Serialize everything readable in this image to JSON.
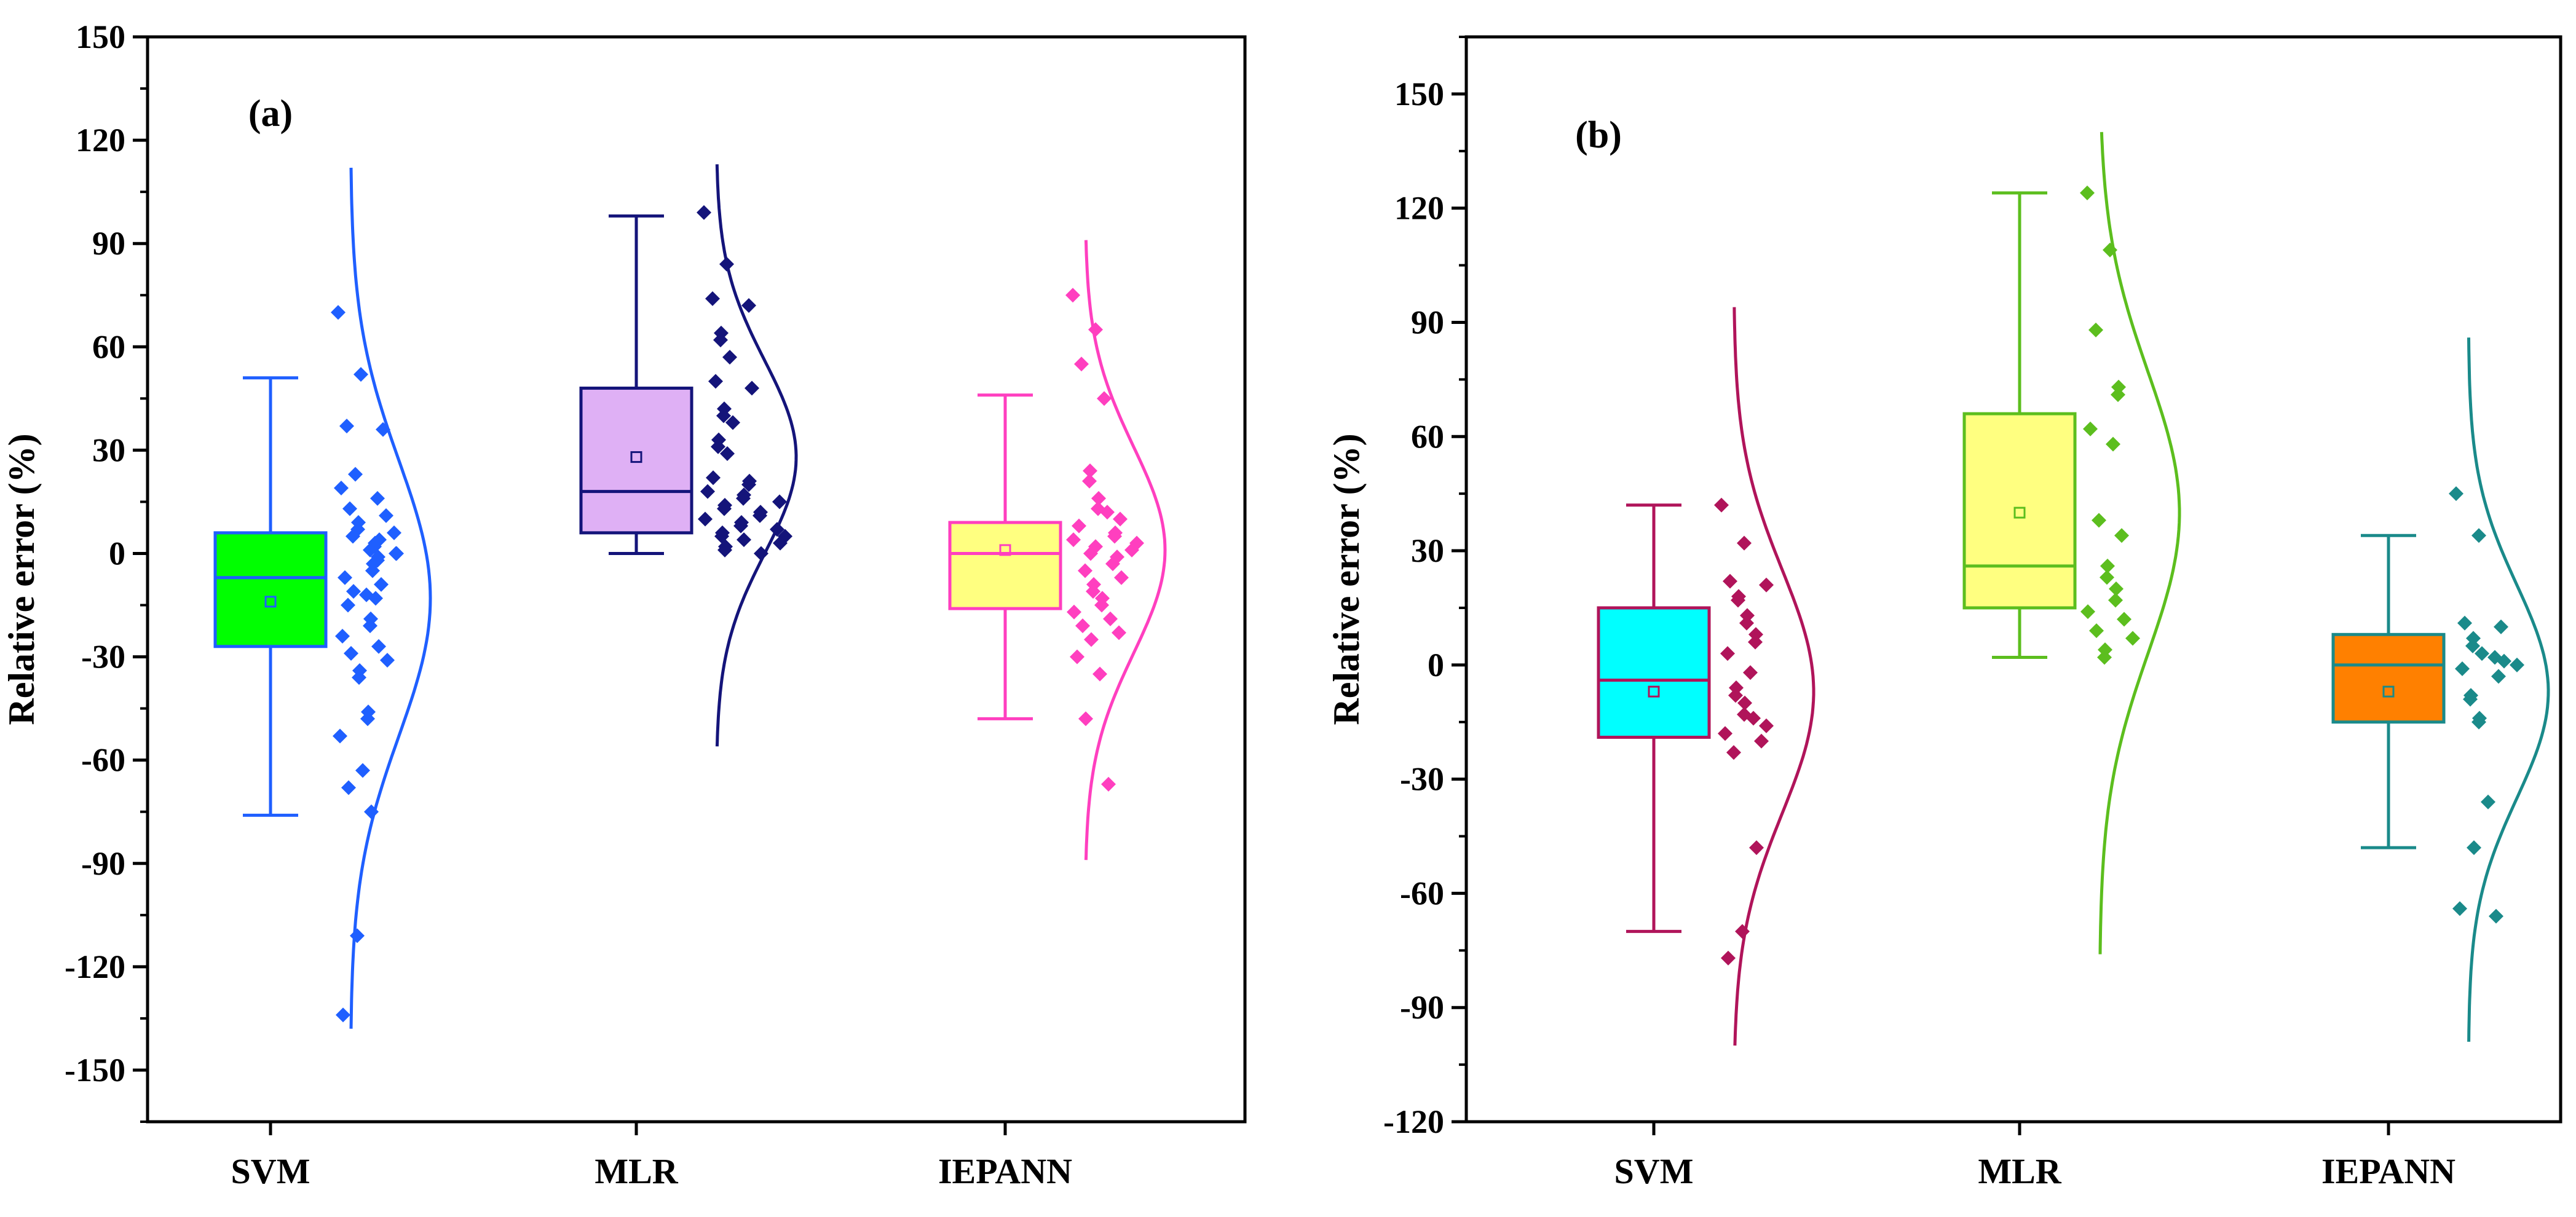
{
  "chart_data": [
    {
      "type": "box",
      "panel_label": "(a)",
      "ylabel": "Relative error (%)",
      "ylim": [
        -165,
        150
      ],
      "yticks": [
        150,
        120,
        90,
        60,
        30,
        0,
        -30,
        -60,
        -90,
        -120,
        -150
      ],
      "yticks_text": [
        "150",
        "120",
        "90",
        "60",
        "30",
        "0",
        "-30",
        "-60",
        "-90",
        "-120",
        "-150"
      ],
      "categories": [
        "SVM",
        "MLR",
        "IEPANN"
      ],
      "series": [
        {
          "name": "SVM",
          "color": "#1f5fff",
          "fill": "#00ff00",
          "stats": {
            "whisker_low": -76,
            "q1": -27,
            "median": -7,
            "mean": -14,
            "q3": 6,
            "whisker_high": 51
          },
          "curve": {
            "mu": -13,
            "sigma": 40,
            "min": -138,
            "max": 112
          },
          "points": [
            70,
            52,
            37,
            36,
            23,
            19,
            16,
            13,
            11,
            9,
            7,
            6,
            5,
            4,
            3,
            2,
            1,
            0,
            0,
            -1,
            -2,
            -3,
            -5,
            -7,
            -9,
            -11,
            -12,
            -13,
            -15,
            -19,
            -21,
            -24,
            -27,
            -29,
            -31,
            -34,
            -36,
            -46,
            -48,
            -53,
            -63,
            -68,
            -75,
            -111,
            -134
          ]
        },
        {
          "name": "MLR",
          "color": "#14147a",
          "fill": "#dfb0f5",
          "stats": {
            "whisker_low": 0,
            "q1": 6,
            "median": 18,
            "mean": 28,
            "q3": 48,
            "whisker_high": 98
          },
          "curve": {
            "mu": 28,
            "sigma": 28,
            "min": -56,
            "max": 113
          },
          "points": [
            99,
            84,
            74,
            72,
            64,
            62,
            57,
            50,
            48,
            42,
            40,
            38,
            33,
            31,
            29,
            22,
            21,
            20,
            18,
            17,
            16,
            15,
            14,
            13,
            12,
            11,
            10,
            9,
            8,
            7,
            6,
            5,
            5,
            4,
            3,
            2,
            1,
            0
          ]
        },
        {
          "name": "IEPANN",
          "color": "#ff3fbf",
          "fill": "#ffff80",
          "stats": {
            "whisker_low": -48,
            "q1": -16,
            "median": 0,
            "mean": 1,
            "q3": 9,
            "whisker_high": 46
          },
          "curve": {
            "mu": 1,
            "sigma": 30,
            "min": -89,
            "max": 91
          },
          "points": [
            75,
            65,
            55,
            45,
            24,
            21,
            16,
            13,
            12,
            10,
            8,
            6,
            5,
            4,
            3,
            2,
            1,
            0,
            -1,
            -3,
            -5,
            -7,
            -9,
            -11,
            -13,
            -15,
            -17,
            -19,
            -21,
            -23,
            -25,
            -30,
            -35,
            -48,
            -67
          ]
        }
      ]
    },
    {
      "type": "box",
      "panel_label": "(b)",
      "ylabel": "Relative error (%)",
      "ylim": [
        -120,
        165
      ],
      "yticks": [
        150,
        120,
        90,
        60,
        30,
        0,
        -30,
        -60,
        -90,
        -120
      ],
      "yticks_text": [
        "150",
        "120",
        "90",
        "60",
        "30",
        "0",
        "-30",
        "-60",
        "-90",
        "-120"
      ],
      "categories": [
        "SVM",
        "MLR",
        "IEPANN"
      ],
      "series": [
        {
          "name": "SVM",
          "color": "#b0145a",
          "fill": "#00ffff",
          "stats": {
            "whisker_low": -70,
            "q1": -19,
            "median": -4,
            "mean": -7,
            "q3": 15,
            "whisker_high": 42
          },
          "curve": {
            "mu": -7,
            "sigma": 32,
            "min": -100,
            "max": 94
          },
          "points": [
            42,
            32,
            22,
            21,
            18,
            17,
            13,
            11,
            8,
            6,
            3,
            -2,
            -6,
            -8,
            -10,
            -13,
            -14,
            -16,
            -18,
            -20,
            -23,
            -48,
            -70,
            -77
          ]
        },
        {
          "name": "MLR",
          "color": "#5cbe1e",
          "fill": "#ffff80",
          "stats": {
            "whisker_low": 2,
            "q1": 15,
            "median": 26,
            "mean": 40,
            "q3": 66,
            "whisker_high": 124
          },
          "curve": {
            "mu": 40,
            "sigma": 37,
            "min": -76,
            "max": 140
          },
          "points": [
            124,
            109,
            88,
            73,
            71,
            62,
            58,
            38,
            34,
            26,
            23,
            20,
            17,
            14,
            12,
            9,
            7,
            4,
            2
          ]
        },
        {
          "name": "IEPANN",
          "color": "#1a8a8a",
          "fill": "#ff8000",
          "stats": {
            "whisker_low": -48,
            "q1": -15,
            "median": 0,
            "mean": -7,
            "q3": 8,
            "whisker_high": 34
          },
          "curve": {
            "mu": -7,
            "sigma": 28,
            "min": -99,
            "max": 86
          },
          "points": [
            45,
            34,
            11,
            10,
            7,
            5,
            3,
            2,
            1,
            0,
            -1,
            -3,
            -8,
            -9,
            -14,
            -15,
            -36,
            -48,
            -64,
            -66
          ]
        }
      ]
    }
  ]
}
